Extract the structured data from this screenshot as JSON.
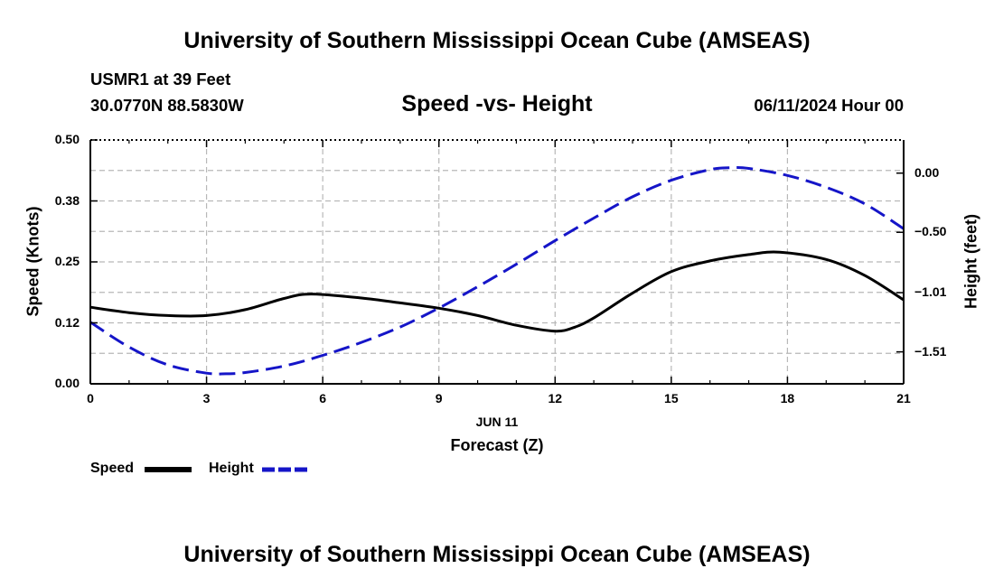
{
  "page": {
    "title_top": "University of Southern Mississippi Ocean Cube (AMSEAS)",
    "title_bottom": "University of Southern Mississippi Ocean Cube (AMSEAS)",
    "station": "USMR1 at 39 Feet",
    "location": "30.0770N  88.5830W",
    "datetime": "06/11/2024 Hour 00"
  },
  "chart_data": {
    "type": "line",
    "title": "Speed -vs- Height",
    "xlabel": "Forecast (Z)",
    "xdate": "JUN 11",
    "ylabel": "Speed (Knots)",
    "y2label": "Height (feet)",
    "xlim": [
      0,
      21
    ],
    "ylim": [
      0,
      0.5
    ],
    "y2lim": [
      -1.78,
      0.28
    ],
    "x_ticks": [
      "0",
      "3",
      "6",
      "9",
      "12",
      "15",
      "18",
      "21"
    ],
    "y_ticks": [
      {
        "value": 0.0,
        "label": "0.00"
      },
      {
        "value": 0.125,
        "label": "0.12"
      },
      {
        "value": 0.25,
        "label": "0.25"
      },
      {
        "value": 0.375,
        "label": "0.38"
      },
      {
        "value": 0.5,
        "label": "0.50"
      }
    ],
    "y2_ticks": [
      {
        "value": 0.0,
        "label": "0.00"
      },
      {
        "value": -0.5,
        "label": "−0.50"
      },
      {
        "value": -1.01,
        "label": "−1.01"
      },
      {
        "value": -1.51,
        "label": "−1.51"
      }
    ],
    "grid": true,
    "series": [
      {
        "name": "Speed",
        "axis": "left",
        "color": "#000000",
        "dash": "solid",
        "x": [
          0,
          1,
          2,
          3,
          4,
          5,
          5.7,
          7,
          8,
          9,
          10,
          11,
          12,
          12.5,
          13,
          14,
          15,
          16,
          17,
          17.8,
          19,
          20,
          21
        ],
        "y": [
          0.157,
          0.146,
          0.14,
          0.14,
          0.152,
          0.175,
          0.184,
          0.176,
          0.166,
          0.155,
          0.14,
          0.12,
          0.108,
          0.116,
          0.135,
          0.186,
          0.23,
          0.252,
          0.265,
          0.27,
          0.255,
          0.222,
          0.172
        ]
      },
      {
        "name": "Height",
        "axis": "right",
        "color": "#1515c8",
        "dash": "dashed",
        "x": [
          0,
          1,
          2,
          3,
          3.5,
          4,
          5,
          6,
          7,
          8,
          9,
          10,
          11,
          12,
          13,
          14,
          15,
          16,
          16.5,
          17,
          18,
          19,
          20,
          21
        ],
        "y": [
          -1.26,
          -1.47,
          -1.62,
          -1.69,
          -1.695,
          -1.685,
          -1.63,
          -1.54,
          -1.43,
          -1.3,
          -1.14,
          -0.96,
          -0.77,
          -0.57,
          -0.38,
          -0.2,
          -0.06,
          0.03,
          0.045,
          0.04,
          -0.02,
          -0.12,
          -0.26,
          -0.47
        ]
      }
    ],
    "legend": [
      {
        "label": "Speed",
        "color": "#000000",
        "dash": "solid"
      },
      {
        "label": "Height",
        "color": "#1515c8",
        "dash": "dashed"
      }
    ]
  }
}
